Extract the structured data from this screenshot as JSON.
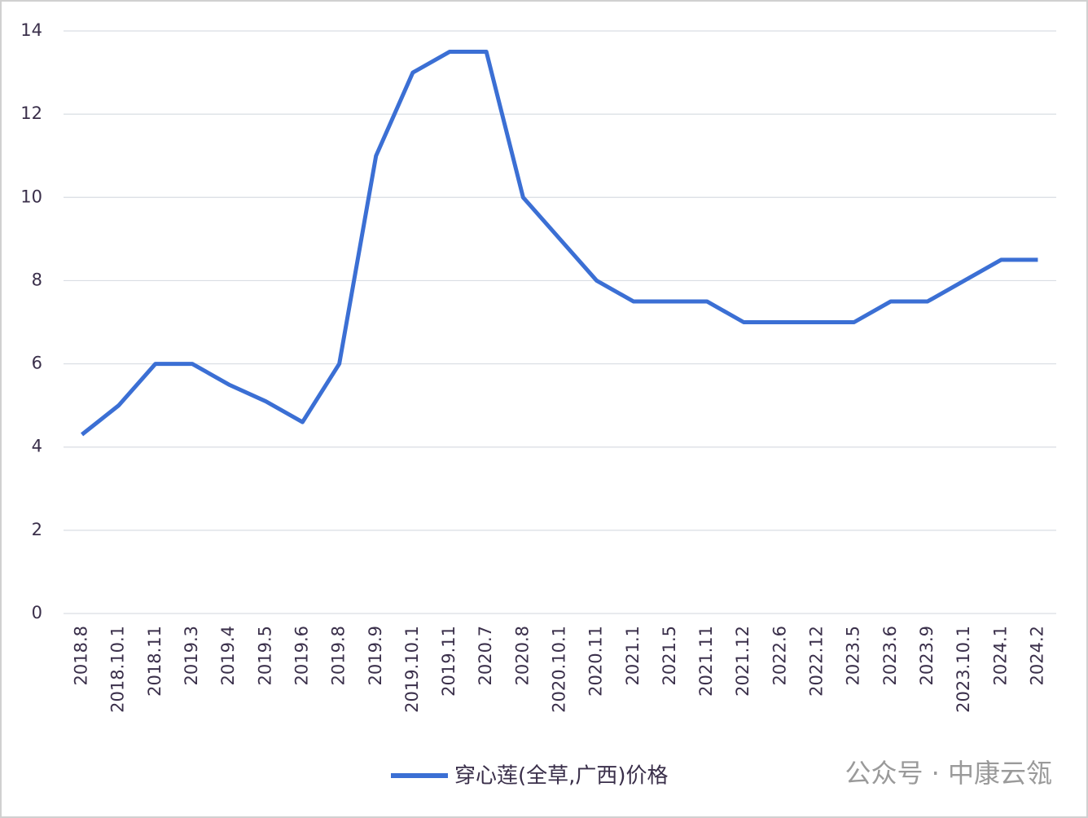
{
  "chart_data": {
    "type": "line",
    "categories": [
      "2018.8",
      "2018.10.1",
      "2018.11",
      "2019.3",
      "2019.4",
      "2019.5",
      "2019.6",
      "2019.8",
      "2019.9",
      "2019.10.1",
      "2019.11",
      "2020.7",
      "2020.8",
      "2020.10.1",
      "2020.11",
      "2021.1",
      "2021.5",
      "2021.11",
      "2021.12",
      "2022.6",
      "2022.12",
      "2023.5",
      "2023.6",
      "2023.9",
      "2023.10.1",
      "2024.1",
      "2024.2"
    ],
    "series": [
      {
        "name": "穿心莲(全草,广西)价格",
        "color": "#3b6fd4",
        "values": [
          4.3,
          5.0,
          6.0,
          6.0,
          5.5,
          5.1,
          4.6,
          6.0,
          11.0,
          13.0,
          13.5,
          13.5,
          10.0,
          9.0,
          8.0,
          7.5,
          7.5,
          7.5,
          7.0,
          7.0,
          7.0,
          7.0,
          7.5,
          7.5,
          8.0,
          8.5,
          8.5
        ]
      }
    ],
    "ylim": [
      0,
      14
    ],
    "yticks": [
      0,
      2,
      4,
      6,
      8,
      10,
      12,
      14
    ],
    "grid": true,
    "legend": "bottom",
    "watermark": "公众号 · 中康云瓴"
  }
}
